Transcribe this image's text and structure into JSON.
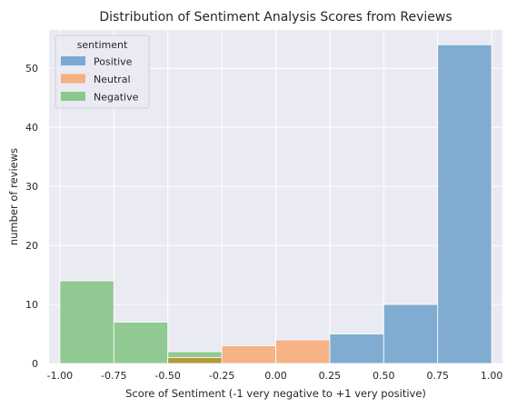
{
  "chart_data": {
    "type": "bar",
    "title": "Distribution of Sentiment Analysis Scores from Reviews",
    "xlabel": "Score of Sentiment (-1 very negative to +1 very positive)",
    "ylabel": "number of reviews",
    "xlim": [
      -1.05,
      1.05
    ],
    "ylim": [
      0,
      56.5
    ],
    "x_ticks": [
      -1.0,
      -0.75,
      -0.5,
      -0.25,
      0.0,
      0.25,
      0.5,
      0.75,
      1.0
    ],
    "y_ticks": [
      0,
      10,
      20,
      30,
      40,
      50
    ],
    "grid": true,
    "legend": {
      "title": "sentiment",
      "placement": "top-left",
      "entries": [
        "Positive",
        "Neutral",
        "Negative"
      ]
    },
    "series": [
      {
        "name": "Positive",
        "color": "#7ba9cf",
        "bins": [
          {
            "x0": 0.25,
            "x1": 0.5,
            "count": 5
          },
          {
            "x0": 0.5,
            "x1": 0.75,
            "count": 10
          },
          {
            "x0": 0.75,
            "x1": 1.0,
            "count": 54
          }
        ]
      },
      {
        "name": "Neutral",
        "color": "#f5b07f",
        "bins": [
          {
            "x0": -0.5,
            "x1": -0.25,
            "count": 1
          },
          {
            "x0": -0.25,
            "x1": 0.0,
            "count": 3
          },
          {
            "x0": 0.0,
            "x1": 0.25,
            "count": 4
          }
        ]
      },
      {
        "name": "Negative",
        "color": "#8cc78d",
        "bins": [
          {
            "x0": -1.0,
            "x1": -0.75,
            "count": 14
          },
          {
            "x0": -0.75,
            "x1": -0.5,
            "count": 7
          },
          {
            "x0": -0.5,
            "x1": -0.25,
            "count": 2
          }
        ]
      }
    ],
    "overlap_color": "#b59a3a",
    "background_color": "#eaeaf2",
    "grid_color": "#ffffff"
  }
}
